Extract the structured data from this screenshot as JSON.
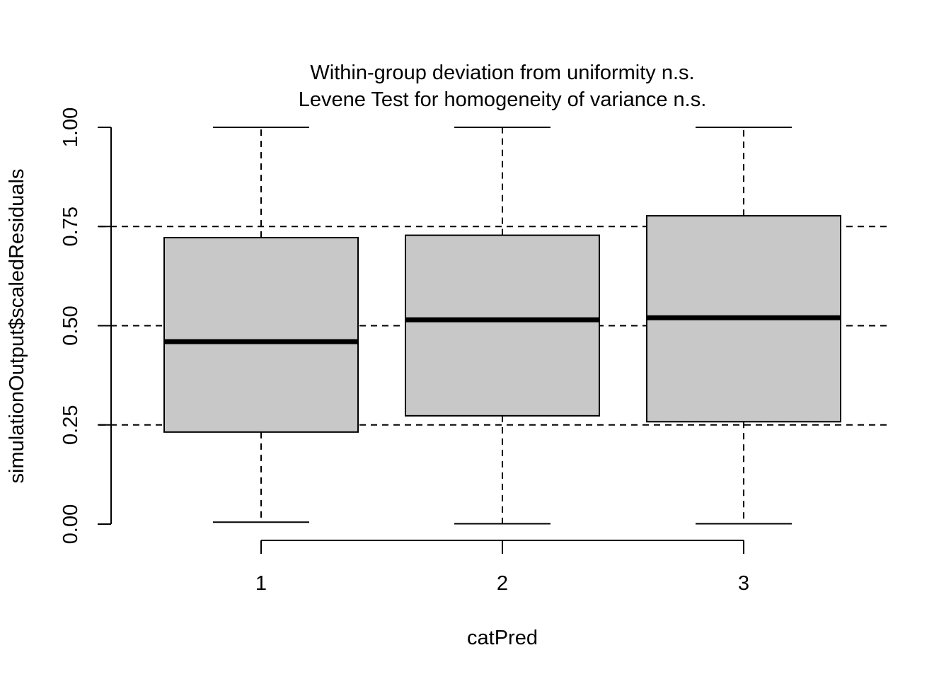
{
  "chart_data": {
    "type": "boxplot",
    "title_lines": [
      "Within-group deviation from uniformity n.s.",
      "Levene Test for homogeneity of variance n.s."
    ],
    "xlabel": "catPred",
    "ylabel": "simulationOutput$scaledResiduals",
    "categories": [
      "1",
      "2",
      "3"
    ],
    "ylim": [
      0,
      1
    ],
    "y_ticks": [
      "0.00",
      "0.25",
      "0.50",
      "0.75",
      "1.00"
    ],
    "reference_lines": [
      0.25,
      0.5,
      0.75
    ],
    "boxes": [
      {
        "category": "1",
        "min": 0.005,
        "q1": 0.232,
        "median": 0.46,
        "q3": 0.722,
        "max": 1.0
      },
      {
        "category": "2",
        "min": 0.001,
        "q1": 0.273,
        "median": 0.515,
        "q3": 0.728,
        "max": 1.0
      },
      {
        "category": "3",
        "min": 0.001,
        "q1": 0.258,
        "median": 0.52,
        "q3": 0.777,
        "max": 1.0
      }
    ],
    "box_fill": "#c8c8c8",
    "line_color": "#000000",
    "grid": false
  }
}
